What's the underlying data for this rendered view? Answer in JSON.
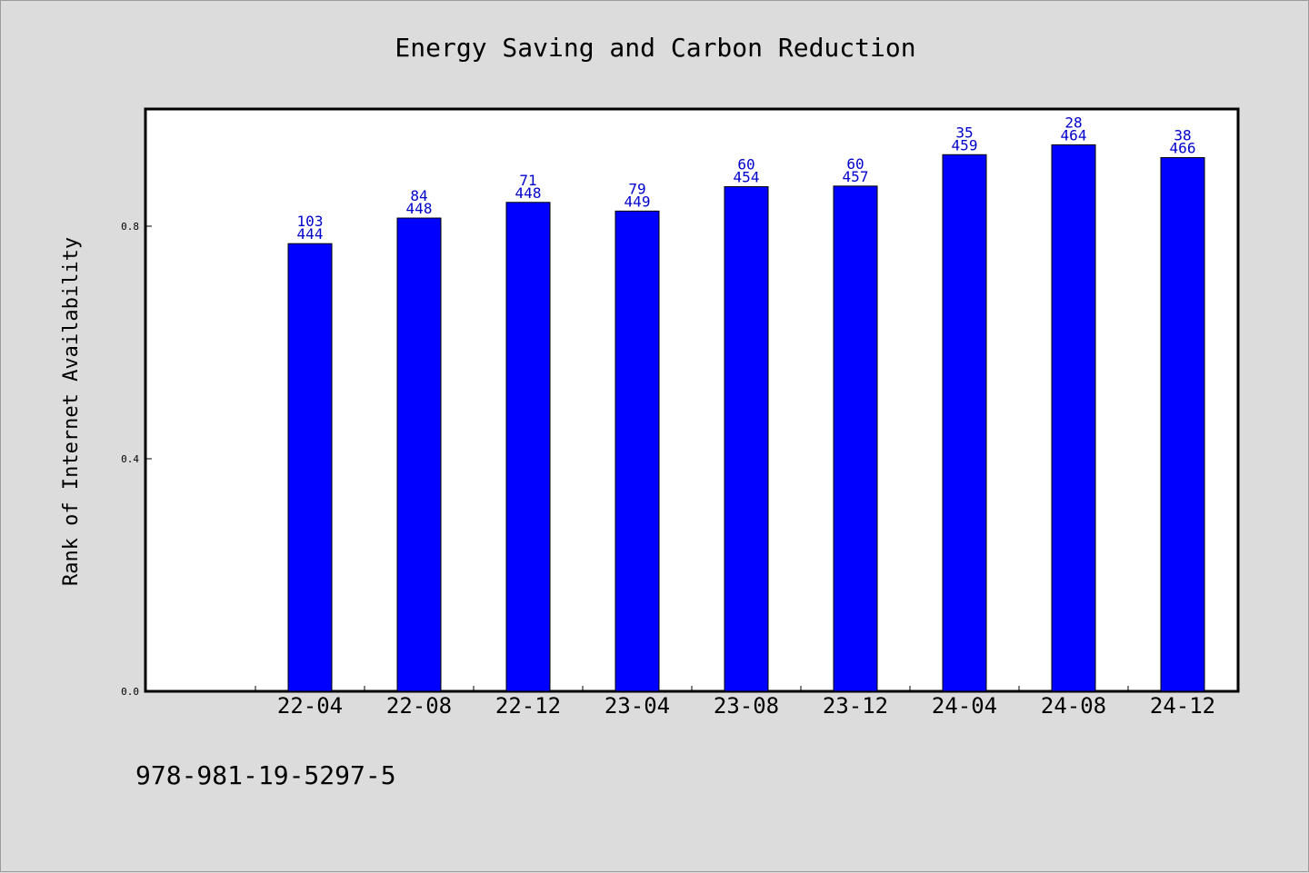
{
  "chart_data": {
    "type": "bar",
    "title": "Energy Saving and Carbon Reduction",
    "ylabel": "Rank of Internet Availability",
    "xlabel": "",
    "categories": [
      "22-04",
      "22-08",
      "22-12",
      "23-04",
      "23-08",
      "23-12",
      "24-04",
      "24-08",
      "24-12"
    ],
    "values": [
      0.77,
      0.814,
      0.841,
      0.826,
      0.868,
      0.869,
      0.923,
      0.94,
      0.918
    ],
    "labels_top": [
      "103",
      "84",
      "71",
      "79",
      "60",
      "60",
      "35",
      "28",
      "38"
    ],
    "labels_bottom": [
      "444",
      "448",
      "448",
      "449",
      "454",
      "457",
      "459",
      "464",
      "466"
    ],
    "yticks": [
      0.0,
      0.4,
      0.8
    ],
    "ytick_labels": [
      "0.0",
      "0.4",
      "0.8"
    ],
    "ylim": [
      0,
      1.0
    ],
    "grid": false,
    "legend": "none",
    "bar_color": "#0000ff",
    "label_color": "#0000cc"
  },
  "footnote": "978-981-19-5297-5"
}
